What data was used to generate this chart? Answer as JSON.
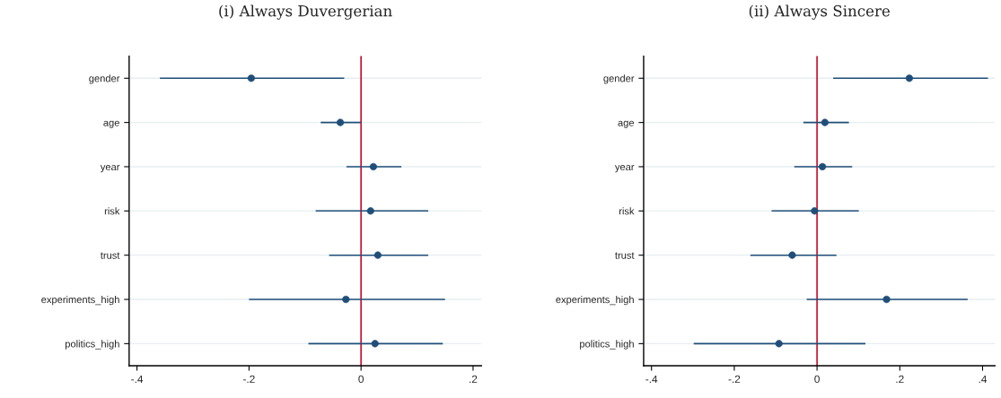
{
  "chart_data": [
    {
      "type": "scatter",
      "orientation": "horizontal",
      "title": "(i) Always Duvergerian",
      "categories": [
        "gender",
        "age",
        "year",
        "risk",
        "trust",
        "experiments_high",
        "politics_high"
      ],
      "series": [
        {
          "color": "#1f4e79",
          "values": [
            -0.196,
            -0.037,
            0.022,
            0.017,
            0.03,
            -0.027,
            0.025
          ],
          "errors": [
            [
              -0.359,
              -0.03
            ],
            [
              -0.072,
              0.0
            ],
            [
              -0.026,
              0.072
            ],
            [
              -0.081,
              0.12
            ],
            [
              -0.057,
              0.12
            ],
            [
              -0.2,
              0.15
            ],
            [
              -0.094,
              0.146
            ]
          ]
        }
      ],
      "xlim": [
        -0.414,
        0.215
      ],
      "xticks": [
        {
          "value": -0.4,
          "label": "-.4"
        },
        {
          "value": -0.2,
          "label": "-.2"
        },
        0,
        {
          "value": 0.2,
          "label": ".2"
        }
      ],
      "ref_lines": [
        {
          "axis": "x",
          "value": 0,
          "color": "#c8102e"
        }
      ],
      "grid": "y",
      "marker": "circle",
      "legend": false
    },
    {
      "type": "scatter",
      "orientation": "horizontal",
      "title": "(ii) Always Sincere",
      "categories": [
        "gender",
        "age",
        "year",
        "risk",
        "trust",
        "experiments_high",
        "politics_high"
      ],
      "series": [
        {
          "color": "#1f4e79",
          "values": [
            0.223,
            0.019,
            0.013,
            -0.006,
            -0.06,
            0.168,
            -0.092
          ],
          "errors": [
            [
              0.039,
              0.413
            ],
            [
              -0.033,
              0.077
            ],
            [
              -0.055,
              0.085
            ],
            [
              -0.11,
              0.101
            ],
            [
              -0.161,
              0.047
            ],
            [
              -0.025,
              0.364
            ],
            [
              -0.298,
              0.117
            ]
          ]
        }
      ],
      "xlim": [
        -0.419,
        0.43
      ],
      "xticks": [
        {
          "value": -0.4,
          "label": "-.4"
        },
        {
          "value": -0.2,
          "label": "-.2"
        },
        0,
        {
          "value": 0.2,
          "label": ".2"
        },
        {
          "value": 0.4,
          "label": ".4"
        }
      ],
      "ref_lines": [
        {
          "axis": "x",
          "value": 0,
          "color": "#c8102e"
        }
      ],
      "grid": "y",
      "marker": "circle",
      "legend": false
    }
  ]
}
